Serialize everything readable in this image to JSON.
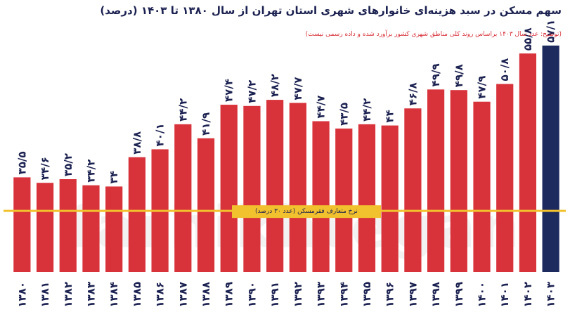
{
  "title": "سهم مسکن در سبد هزینه‌ای خانوارهای شهری استان تهران از سال ۱۳۸۰ تا ۱۴۰۳ (درصد)",
  "subtitle": "(توضیح: عدد سال ۱۴۰۳ براساس روند کلی مناطق شهری کشور برآورد شده و داده رسمی نیست)",
  "watermark": "farhikhtegan",
  "colors": {
    "bar": "#d8323a",
    "bar_highlight": "#1d2a5e",
    "reference_line": "#f2c12e",
    "title": "#1b2150",
    "subtitle": "#d8323a"
  },
  "chart_data": {
    "type": "bar",
    "categories": [
      "۱۳۸۰",
      "۱۳۸۱",
      "۱۳۸۲",
      "۱۳۸۳",
      "۱۳۸۴",
      "۱۳۸۵",
      "۱۳۸۶",
      "۱۳۸۷",
      "۱۳۸۸",
      "۱۳۸۹",
      "۱۳۹۰",
      "۱۳۹۱",
      "۱۳۹۲",
      "۱۳۹۳",
      "۱۳۹۴",
      "۱۳۹۵",
      "۱۳۹۶",
      "۱۳۹۷",
      "۱۳۹۸",
      "۱۳۹۹",
      "۱۴۰۰",
      "۱۴۰۱",
      "۱۴۰۲",
      "۱۴۰۳"
    ],
    "values": [
      35.5,
      34.6,
      35.2,
      34.2,
      34,
      38.8,
      40.1,
      44.2,
      41.9,
      47.4,
      47.2,
      48.2,
      47.7,
      44.7,
      43.5,
      44.2,
      44,
      46.8,
      49.9,
      49.8,
      47.9,
      50.8,
      55.8,
      57.1
    ],
    "value_labels": [
      "۳۵/۵",
      "۳۴/۶",
      "۳۵/۲",
      "۳۴/۲",
      "۳۴",
      "۳۸/۸",
      "۴۰/۱",
      "۴۴/۲",
      "۴۱/۹",
      "۴۷/۴",
      "۴۷/۲",
      "۴۸/۲",
      "۴۷/۷",
      "۴۴/۷",
      "۴۳/۵",
      "۴۴/۲",
      "۴۴",
      "۴۶/۸",
      "۴۹/۹",
      "۴۹/۸",
      "۴۷/۹",
      "۵۰/۸",
      "۵۵/۸",
      "۵۷/۱"
    ],
    "highlight_index": 23,
    "ylim": [
      20,
      58
    ],
    "reference_line": {
      "value": 30,
      "label": "نرخ متعارف فقرمسکن (عدد ۳۰ درصد)"
    },
    "grid": false
  }
}
